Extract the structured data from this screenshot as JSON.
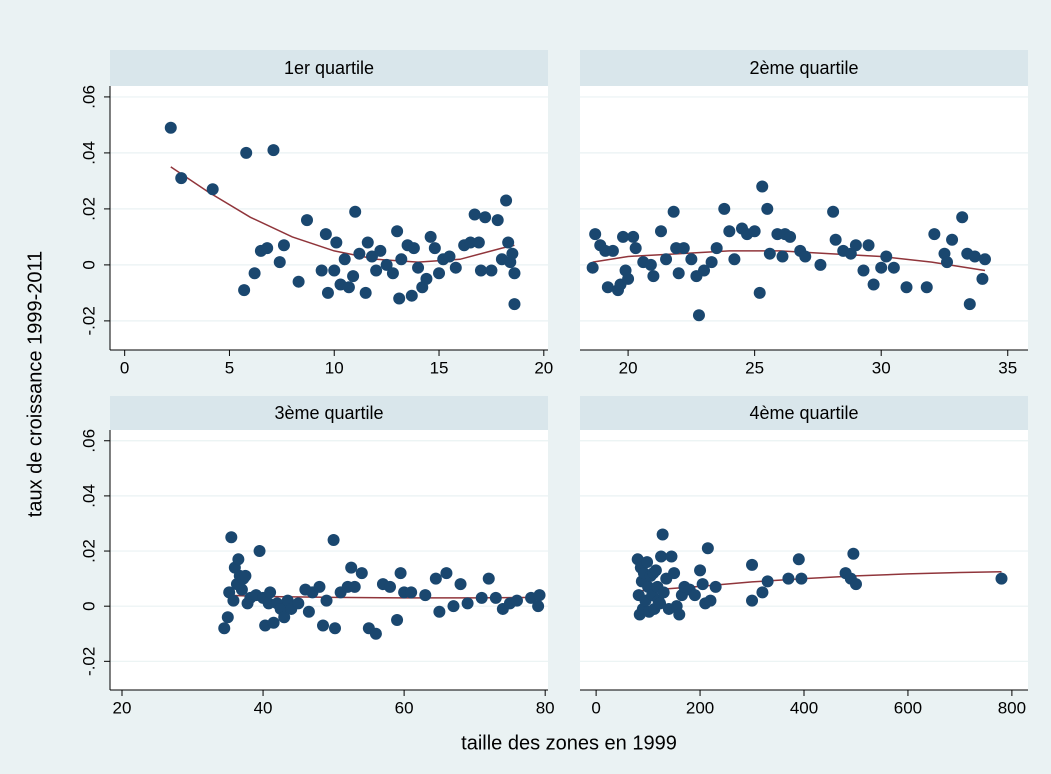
{
  "chart_data": {
    "type": "scatter",
    "ytitle": "taux de croissance 1999-2011",
    "xtitle": "taille des zones en 1999",
    "ylim": [
      -0.0304,
      0.0639
    ],
    "yticks": [
      {
        "value": -0.02,
        "label": "-.02"
      },
      {
        "value": 0,
        "label": "0"
      },
      {
        "value": 0.02,
        "label": ".02"
      },
      {
        "value": 0.04,
        "label": ".04"
      },
      {
        "value": 0.06,
        "label": ".06"
      }
    ],
    "grid": true,
    "point_color": "#1a476f",
    "fit_color": "#90353b",
    "panels": [
      {
        "title": "1er quartile",
        "xlim": [
          -0.7,
          20.2
        ],
        "xticks": [
          0,
          5,
          10,
          15,
          20
        ],
        "x": [
          2.2,
          2.7,
          4.2,
          5.8,
          7.1,
          5.7,
          6.2,
          6.5,
          6.8,
          7.4,
          7.6,
          8.3,
          8.7,
          9.4,
          9.6,
          9.7,
          10,
          10.1,
          10.3,
          10.5,
          10.7,
          10.9,
          11,
          11.2,
          11.5,
          11.6,
          11.8,
          12,
          12.2,
          12.5,
          12.8,
          13,
          13.1,
          13.2,
          13.5,
          13.7,
          13.8,
          14,
          14.2,
          14.4,
          14.6,
          14.8,
          15,
          15.2,
          15.5,
          15.8,
          16.2,
          16.5,
          16.7,
          16.9,
          17,
          17.2,
          17.5,
          17.8,
          18,
          18.2,
          18.3,
          18.4,
          18.6,
          18.6,
          18.5
        ],
        "y": [
          0.049,
          0.031,
          0.027,
          0.04,
          0.041,
          -0.009,
          -0.003,
          0.005,
          0.006,
          0.001,
          0.007,
          -0.006,
          0.016,
          -0.002,
          0.011,
          -0.01,
          -0.002,
          0.008,
          -0.007,
          0.002,
          -0.008,
          -0.004,
          0.019,
          0.004,
          -0.01,
          0.008,
          0.003,
          -0.002,
          0.005,
          0.0,
          -0.003,
          0.012,
          -0.012,
          0.002,
          0.007,
          -0.011,
          0.006,
          -0.001,
          -0.008,
          -0.005,
          0.01,
          0.006,
          -0.003,
          0.002,
          0.003,
          -0.001,
          0.007,
          0.008,
          0.018,
          0.008,
          -0.002,
          0.017,
          -0.002,
          0.016,
          0.002,
          0.023,
          0.008,
          0.001,
          -0.003,
          -0.014,
          0.004
        ],
        "fit_x": [
          2.2,
          4,
          6,
          8,
          10,
          12,
          14,
          16,
          18,
          18.6
        ],
        "fit_y": [
          0.035,
          0.026,
          0.017,
          0.01,
          0.005,
          0.002,
          0.001,
          0.002,
          0.006,
          0.007
        ]
      },
      {
        "title": "2ème quartile",
        "xlim": [
          18.1,
          35.8
        ],
        "xticks": [
          20,
          25,
          30,
          35
        ],
        "x": [
          18.6,
          18.7,
          18.9,
          19.1,
          19.2,
          19.4,
          19.6,
          19.7,
          19.8,
          19.9,
          20,
          20.2,
          20.3,
          20.6,
          20.9,
          21,
          21.3,
          21.5,
          21.8,
          21.9,
          22,
          22.2,
          22.5,
          22.7,
          22.8,
          23,
          23.3,
          23.5,
          23.8,
          24,
          24.2,
          24.5,
          24.7,
          25,
          25.2,
          25.3,
          25.5,
          25.6,
          25.9,
          26.1,
          26.2,
          26.4,
          26.8,
          27,
          27.6,
          28.1,
          28.2,
          28.5,
          28.8,
          29,
          29.3,
          29.5,
          29.7,
          30,
          30.2,
          30.5,
          31,
          31.8,
          32.1,
          32.5,
          32.6,
          32.8,
          33.2,
          33.4,
          33.5,
          33.7,
          34,
          34.1
        ],
        "y": [
          -0.001,
          0.011,
          0.007,
          0.005,
          -0.008,
          0.005,
          -0.009,
          -0.007,
          0.01,
          -0.002,
          -0.005,
          0.01,
          0.006,
          0.001,
          0.0,
          -0.004,
          0.012,
          0.002,
          0.019,
          0.006,
          -0.003,
          0.006,
          0.002,
          -0.004,
          -0.018,
          -0.002,
          0.001,
          0.006,
          0.02,
          0.012,
          0.002,
          0.013,
          0.011,
          0.012,
          -0.01,
          0.028,
          0.02,
          0.004,
          0.011,
          0.003,
          0.011,
          0.01,
          0.005,
          0.003,
          0.0,
          0.019,
          0.009,
          0.005,
          0.004,
          0.007,
          -0.002,
          0.007,
          -0.007,
          -0.001,
          0.003,
          -0.001,
          -0.008,
          -0.008,
          0.011,
          0.004,
          0.001,
          0.009,
          0.017,
          0.004,
          -0.014,
          0.003,
          -0.005,
          0.002
        ],
        "fit_x": [
          18.6,
          20,
          22,
          24,
          26,
          28,
          30,
          32,
          34.1
        ],
        "fit_y": [
          0.001,
          0.003,
          0.004,
          0.005,
          0.005,
          0.004,
          0.003,
          0.001,
          -0.002
        ]
      },
      {
        "title": "3ème quartile",
        "xlim": [
          18.3,
          80.4
        ],
        "xticks": [
          20,
          40,
          60,
          80
        ],
        "x": [
          34.5,
          35,
          35.2,
          35.5,
          35.8,
          36,
          36.3,
          36.5,
          36.7,
          37,
          37.2,
          37.5,
          37.8,
          38.2,
          39,
          39.5,
          40,
          40.3,
          40.8,
          41,
          41.5,
          42,
          42.5,
          43,
          43.5,
          44,
          45,
          46,
          46.5,
          47,
          48,
          48.5,
          49,
          50,
          50.2,
          51,
          52,
          52.5,
          53,
          54,
          55,
          56,
          57,
          58,
          59,
          59.5,
          60,
          61,
          63,
          64.5,
          65,
          66,
          67,
          68,
          69,
          71,
          72,
          73,
          74,
          75,
          76,
          78,
          79,
          79.2
        ],
        "y": [
          -0.008,
          -0.004,
          0.005,
          0.025,
          0.002,
          0.014,
          0.008,
          0.017,
          0.011,
          0.006,
          0.01,
          0.011,
          0.001,
          0.003,
          0.004,
          0.02,
          0.003,
          -0.007,
          0.001,
          0.005,
          -0.006,
          0.001,
          -0.001,
          -0.004,
          0.002,
          -0.001,
          0.001,
          0.006,
          -0.002,
          0.005,
          0.007,
          -0.007,
          0.002,
          0.024,
          -0.008,
          0.005,
          0.007,
          0.014,
          0.007,
          0.012,
          -0.008,
          -0.01,
          0.008,
          0.007,
          -0.005,
          0.012,
          0.005,
          0.005,
          0.004,
          0.01,
          -0.002,
          0.012,
          0.0,
          0.008,
          0.001,
          0.003,
          0.01,
          0.003,
          -0.001,
          0.001,
          0.002,
          0.003,
          0.0,
          0.004
        ],
        "fit_x": [
          34.5,
          40,
          50,
          60,
          70,
          79.2
        ],
        "fit_y": [
          0.004,
          0.0035,
          0.0032,
          0.003,
          0.003,
          0.0032
        ]
      },
      {
        "title": "4ème quartile",
        "xlim": [
          -31,
          831
        ],
        "xticks": [
          0,
          200,
          400,
          600,
          800
        ],
        "x": [
          80,
          82,
          84,
          86,
          88,
          90,
          92,
          95,
          98,
          100,
          102,
          105,
          108,
          110,
          112,
          115,
          118,
          120,
          123,
          125,
          128,
          130,
          135,
          140,
          145,
          150,
          155,
          160,
          165,
          170,
          180,
          190,
          200,
          205,
          210,
          215,
          220,
          230,
          300,
          300,
          320,
          330,
          370,
          390,
          395,
          480,
          490,
          495,
          500,
          780
        ],
        "y": [
          0.017,
          0.004,
          -0.003,
          0.014,
          0.009,
          -0.001,
          0.012,
          0.002,
          0.016,
          0.007,
          -0.002,
          0.011,
          0.004,
          0.012,
          -0.001,
          0.013,
          0.007,
          0.002,
          0.001,
          0.018,
          0.026,
          0.005,
          0.01,
          -0.001,
          0.018,
          0.012,
          0.0,
          -0.003,
          0.004,
          0.007,
          0.006,
          0.004,
          0.013,
          0.008,
          0.001,
          0.021,
          0.002,
          0.007,
          0.015,
          0.002,
          0.005,
          0.009,
          0.01,
          0.017,
          0.01,
          0.012,
          0.01,
          0.019,
          0.008,
          0.01
        ],
        "fit_x": [
          80,
          200,
          300,
          400,
          500,
          600,
          700,
          780
        ],
        "fit_y": [
          0.0055,
          0.0072,
          0.0088,
          0.01,
          0.011,
          0.0117,
          0.0122,
          0.0125
        ]
      }
    ]
  }
}
